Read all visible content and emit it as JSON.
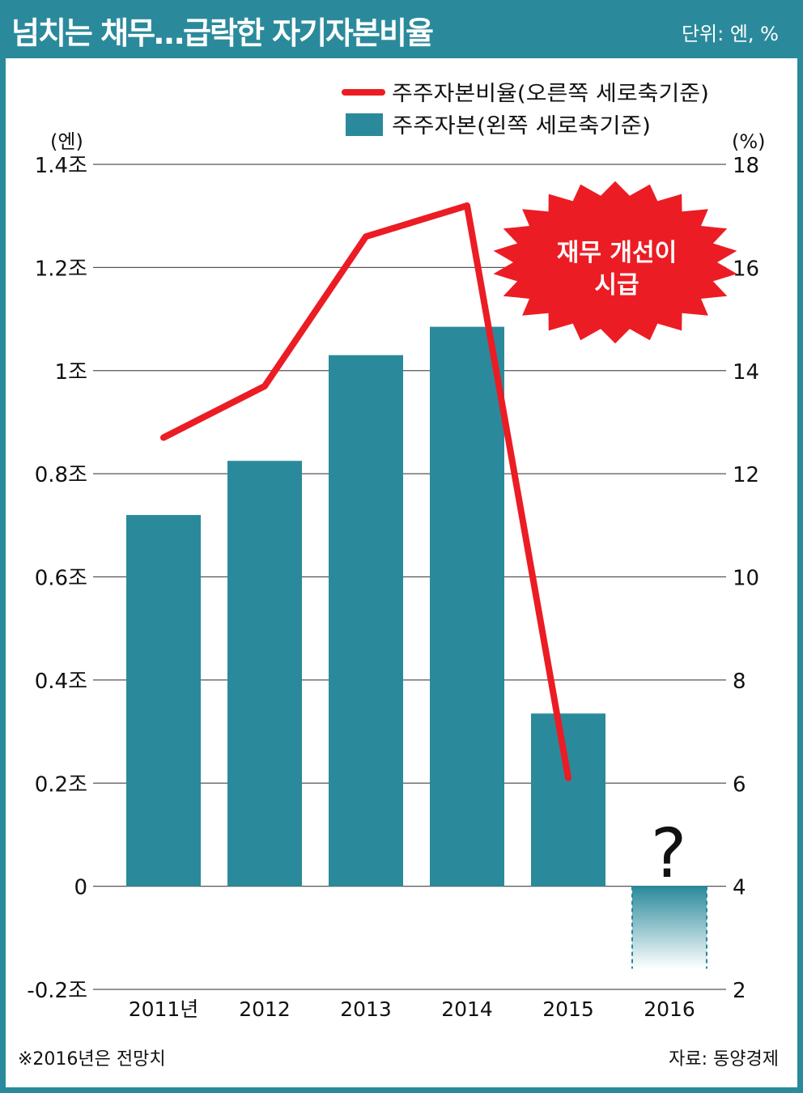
{
  "header": {
    "title": "넘치는 채무…급락한 자기자본비율",
    "unit": "단위: 엔, %"
  },
  "legend": {
    "line_label": "주주자본비율(오른쪽 세로축기준)",
    "bar_label": "주주자본(왼쪽 세로축기준)"
  },
  "axes": {
    "left_unit": "(엔)",
    "right_unit": "(%)",
    "left_ticks": [
      "1.4조",
      "1.2조",
      "1조",
      "0.8조",
      "0.6조",
      "0.4조",
      "0.2조",
      "0",
      "-0.2조"
    ],
    "right_ticks": [
      "18",
      "16",
      "14",
      "12",
      "10",
      "8",
      "6",
      "4",
      "2"
    ]
  },
  "burst": {
    "line1": "재무 개선이",
    "line2": "시급"
  },
  "question_mark": "?",
  "footer": {
    "note": "※2016년은 전망치",
    "source": "자료: 동양경제"
  },
  "colors": {
    "teal": "#2a8a9b",
    "red": "#ec1c24",
    "grid": "#555555"
  },
  "chart_data": {
    "type": "bar",
    "categories": [
      "2011년",
      "2012",
      "2013",
      "2014",
      "2015",
      "2016"
    ],
    "series": [
      {
        "name": "주주자본(왼쪽 세로축기준)",
        "type": "bar",
        "axis": "left",
        "values_trillion_yen": [
          0.72,
          0.825,
          1.03,
          1.085,
          0.335,
          -0.16
        ],
        "forecast_index": 5
      },
      {
        "name": "주주자본비율(오른쪽 세로축기준)",
        "type": "line",
        "axis": "right",
        "values_percent": [
          12.7,
          13.7,
          16.6,
          17.2,
          6.1,
          null
        ]
      }
    ],
    "left_ylim": [
      -0.2,
      1.4
    ],
    "right_ylim": [
      2,
      18
    ],
    "grid": true,
    "legend_position": "top-right"
  }
}
